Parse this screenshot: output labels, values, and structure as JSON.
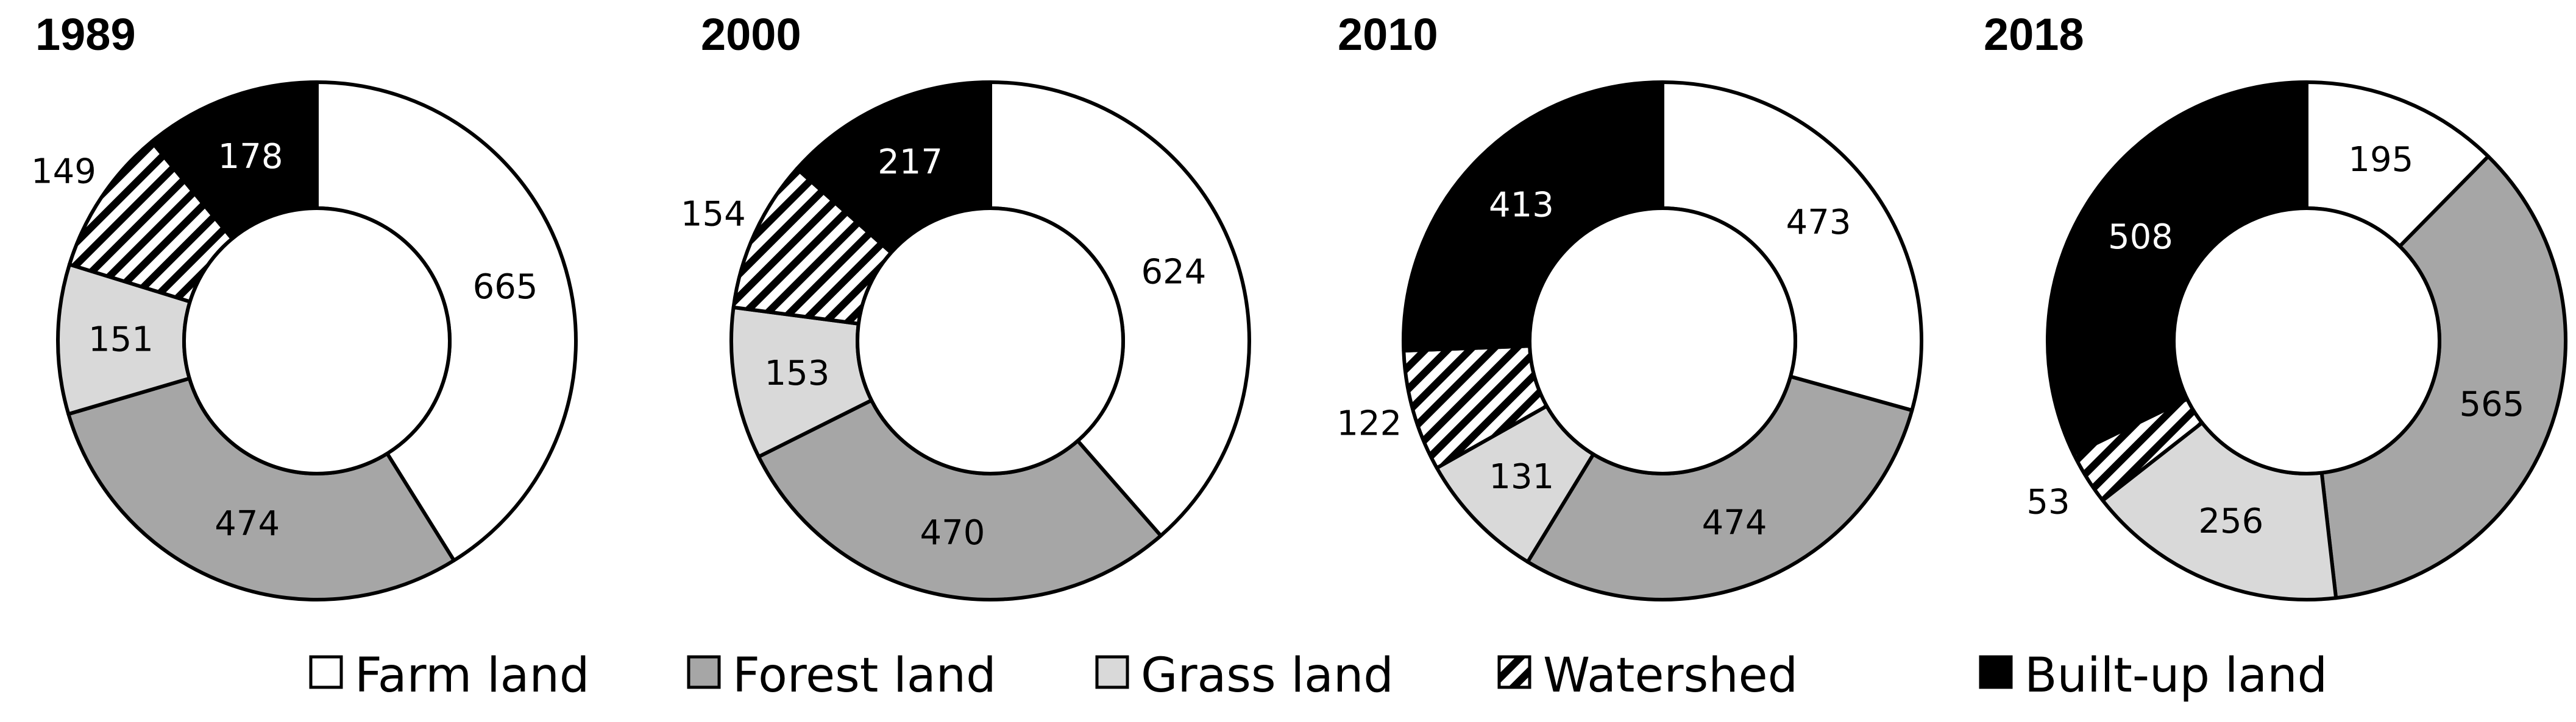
{
  "colors": {
    "Farm land": "#ffffff",
    "Forest land": "#a6a6a6",
    "Grass land": "#d9d9d9",
    "Watershed": "hatch",
    "Built-up land": "#000000"
  },
  "chart_data": [
    {
      "type": "pie",
      "variant": "donut",
      "title": "1989",
      "categories": [
        "Farm land",
        "Forest land",
        "Grass land",
        "Watershed",
        "Built-up land"
      ],
      "values": [
        665,
        474,
        151,
        149,
        178
      ]
    },
    {
      "type": "pie",
      "variant": "donut",
      "title": "2000",
      "categories": [
        "Farm land",
        "Forest land",
        "Grass land",
        "Watershed",
        "Built-up land"
      ],
      "values": [
        624,
        470,
        153,
        154,
        217
      ]
    },
    {
      "type": "pie",
      "variant": "donut",
      "title": "2010",
      "categories": [
        "Farm land",
        "Forest land",
        "Grass land",
        "Watershed",
        "Built-up land"
      ],
      "values": [
        473,
        474,
        131,
        122,
        413
      ]
    },
    {
      "type": "pie",
      "variant": "donut",
      "title": "2018",
      "categories": [
        "Farm land",
        "Forest land",
        "Grass land",
        "Watershed",
        "Built-up land"
      ],
      "values": [
        195,
        565,
        256,
        53,
        508
      ]
    }
  ],
  "legend": {
    "placement": "bottom",
    "items": [
      {
        "label": "Farm land",
        "category": "Farm land"
      },
      {
        "label": "Forest land",
        "category": "Forest land"
      },
      {
        "label": "Grass land",
        "category": "Grass land"
      },
      {
        "label": "Watershed",
        "category": "Watershed"
      },
      {
        "label": "Built-up land",
        "category": "Built-up land"
      }
    ]
  }
}
